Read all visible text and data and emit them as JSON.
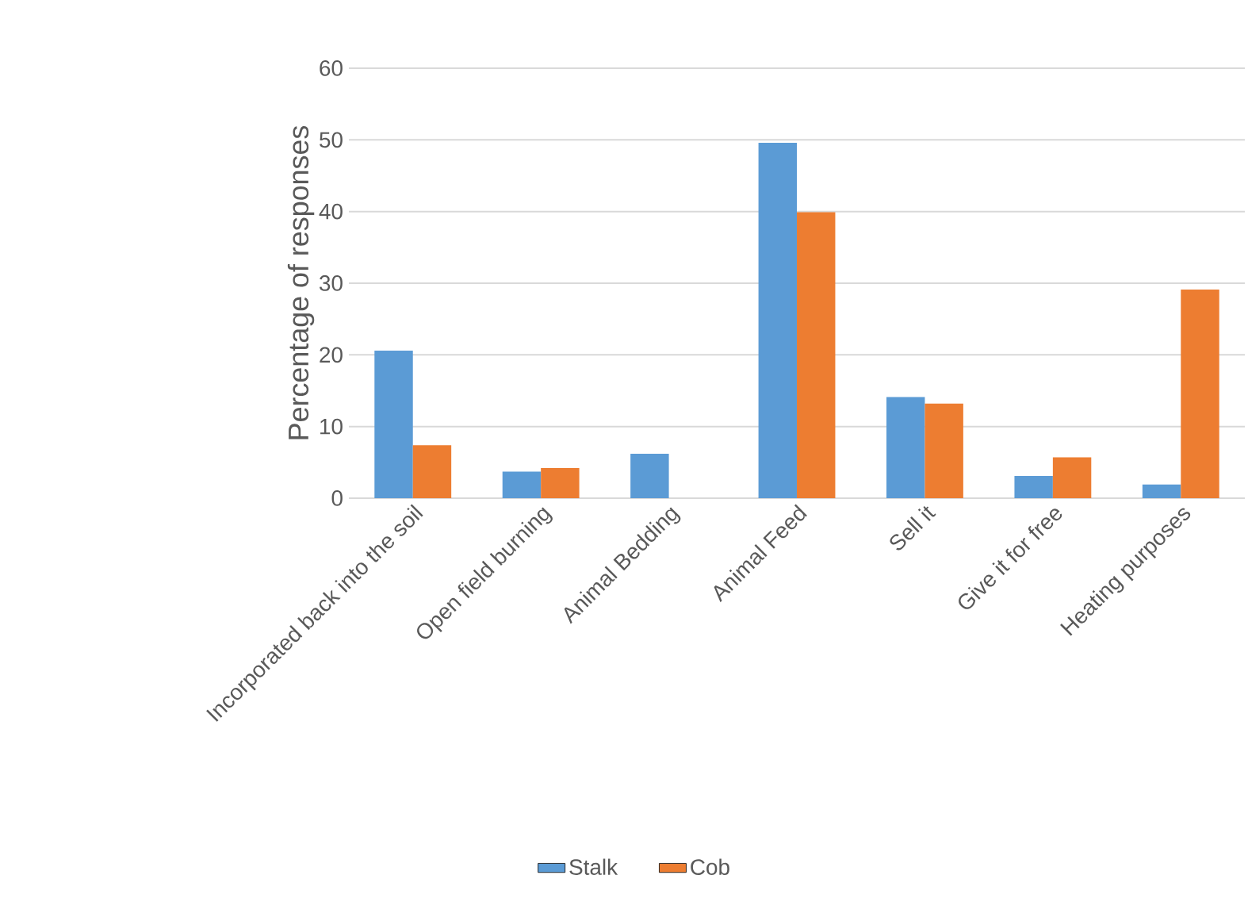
{
  "chart_data": {
    "type": "bar",
    "ylabel": "Percentage of responses",
    "categories": [
      "Incorporated back into the soil",
      "Open field burning",
      "Animal Bedding",
      "Animal Feed",
      "Sell it",
      "Give it for free",
      "Heating purposes"
    ],
    "series": [
      {
        "name": "Stalk",
        "color": "#5b9bd5",
        "values": [
          20.6,
          3.7,
          6.2,
          49.6,
          14.1,
          3.1,
          1.9
        ]
      },
      {
        "name": "Cob",
        "color": "#ed7d31",
        "values": [
          7.4,
          4.2,
          0,
          39.9,
          13.2,
          5.7,
          29.1
        ]
      }
    ],
    "ylim": [
      0,
      60
    ],
    "yticks": [
      0,
      10,
      20,
      30,
      40,
      50,
      60
    ],
    "grid": "y",
    "legend": "bottom"
  }
}
